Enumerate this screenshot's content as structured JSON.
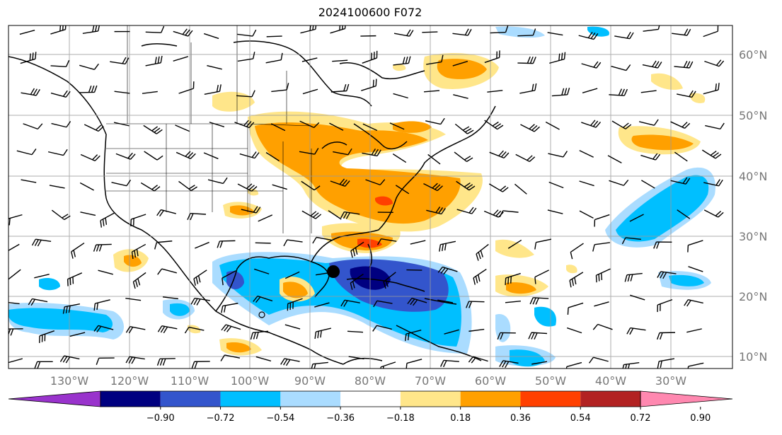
{
  "title": "2024100600 F072",
  "map": {
    "lon_labels": [
      "130°W",
      "120°W",
      "110°W",
      "100°W",
      "90°W",
      "80°W",
      "70°W",
      "60°W",
      "50°W",
      "40°W",
      "30°W"
    ],
    "lat_labels": [
      "60°N",
      "50°N",
      "40°N",
      "30°N",
      "20°N",
      "10°N"
    ],
    "storm_marker": "filled-circle"
  },
  "colorbar": {
    "colors": [
      "#9933cc",
      "#000080",
      "#3355cc",
      "#00bfff",
      "#aadcff",
      "#ffffff",
      "#ffe68a",
      "#ffa000",
      "#ff4000",
      "#b22222",
      "#ff88b0"
    ],
    "labels": [
      "−0.90",
      "−0.72",
      "−0.54",
      "−0.36",
      "−0.18",
      "0.18",
      "0.36",
      "0.54",
      "0.72",
      "0.90"
    ]
  }
}
